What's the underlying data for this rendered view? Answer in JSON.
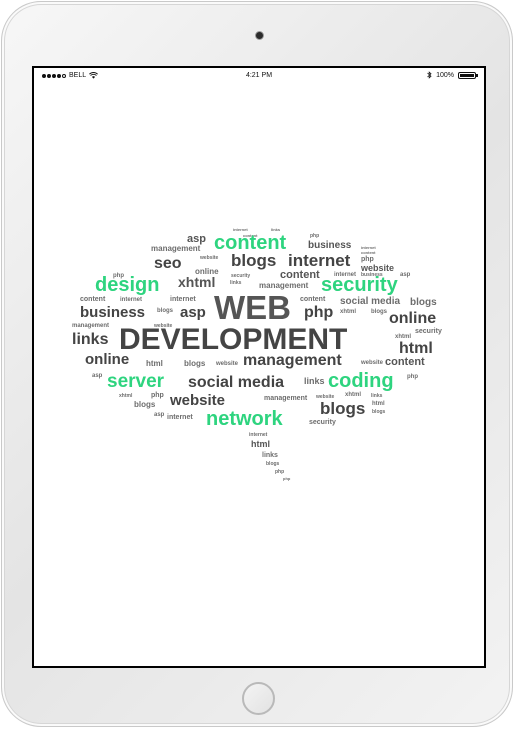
{
  "status": {
    "carrier": "BELL",
    "time": "4:21 PM",
    "battery": "100%",
    "battery_level": 1.0
  },
  "cloud": {
    "main_1": "WEB",
    "main_2": "DEVELOPMENT",
    "green": {
      "content": "content",
      "design": "design",
      "security": "security",
      "server": "server",
      "coding": "coding",
      "network": "network"
    },
    "words": {
      "internet_top": "internet",
      "links_top": "links",
      "content_tiny": "content",
      "asp_1": "asp",
      "php_1": "php",
      "business_1": "business",
      "management_1": "management",
      "internet_tiny1": "internet",
      "website_1": "website",
      "seo": "seo",
      "blogs_1": "blogs",
      "internet_1": "internet",
      "php_2": "php",
      "online_1": "online",
      "website_2": "website",
      "links_1": "links",
      "xhtml_1": "xhtml",
      "security_tiny": "security",
      "management_2": "management",
      "content_1": "content",
      "internet_2": "internet",
      "business_2": "business",
      "asp_2": "asp",
      "content_2": "content",
      "internet_3": "internet",
      "internet_4": "internet",
      "content_3": "content",
      "social_media_1": "social media",
      "blogs_2": "blogs",
      "business_3": "business",
      "blogs_3": "blogs",
      "asp_3": "asp",
      "php_3": "php",
      "xhtml_2": "xhtml",
      "blogs_4": "blogs",
      "online_2": "online",
      "management_3": "management",
      "website_3": "website",
      "links_2": "links",
      "security_1": "security",
      "xhtml_3": "xhtml",
      "html_1": "html",
      "online_3": "online",
      "html_2": "html",
      "blogs_5": "blogs",
      "website_4": "website",
      "management_4": "management",
      "website_5": "website",
      "content_4": "content",
      "asp_4": "asp",
      "social_media_2": "social media",
      "links_3": "links",
      "php_4": "php",
      "xhtml_4": "xhtml",
      "php_5": "php",
      "website_6": "website",
      "management_5": "management",
      "xhtml_5": "xhtml",
      "links_4": "links",
      "blogs_6": "blogs",
      "asp_5": "asp",
      "internet_5": "internet",
      "website_7": "website",
      "blogs_7": "blogs",
      "html_3": "html",
      "blogs_8": "blogs",
      "security_2": "security",
      "internet_6": "internet",
      "html_4": "html",
      "links_5": "links",
      "blogs_9": "blogs",
      "php_6": "php",
      "php_7": "php"
    }
  }
}
